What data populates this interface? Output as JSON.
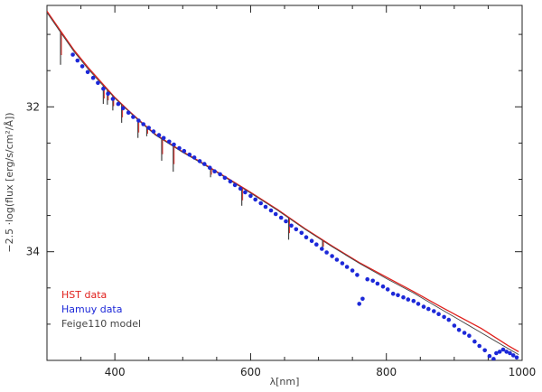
{
  "chart_data": {
    "type": "scatter",
    "xlabel": "λ[nm]",
    "ylabel": "−2.5 ·log(flux [erg/s/cm²/Å])",
    "xlim": [
      300,
      1000
    ],
    "ylim": [
      35.5,
      30.6
    ],
    "y_inverted": true,
    "grid": false,
    "x_ticks": [
      400,
      600,
      800,
      1000
    ],
    "y_ticks": [
      32,
      34
    ],
    "legend_position": "bottom-left",
    "legend": [
      {
        "label": "HST data",
        "color": "#e0201c"
      },
      {
        "label": "Hamuy data",
        "color": "#1c28d8"
      },
      {
        "label": "Feige110 model",
        "color": "#444444"
      }
    ],
    "series": [
      {
        "name": "HST data",
        "style": "line",
        "color": "#e0201c",
        "x": [
          300,
          320,
          340,
          360,
          380,
          400,
          420,
          440,
          460,
          480,
          500,
          530,
          560,
          600,
          640,
          680,
          720,
          760,
          800,
          840,
          880,
          900,
          920,
          940,
          960,
          980,
          995
        ],
        "y": [
          30.68,
          30.95,
          31.22,
          31.45,
          31.66,
          31.87,
          32.05,
          32.22,
          32.38,
          32.5,
          32.62,
          32.78,
          32.95,
          33.18,
          33.42,
          33.68,
          33.92,
          34.15,
          34.35,
          34.55,
          34.76,
          34.86,
          34.96,
          35.06,
          35.18,
          35.3,
          35.38
        ]
      },
      {
        "name": "Feige110 model",
        "style": "line",
        "color": "#444444",
        "x": [
          300,
          320,
          340,
          360,
          380,
          400,
          420,
          440,
          460,
          480,
          500,
          530,
          560,
          600,
          640,
          680,
          720,
          760,
          800,
          840,
          880,
          900,
          920,
          940,
          960,
          980,
          995
        ],
        "y": [
          30.7,
          30.97,
          31.24,
          31.47,
          31.68,
          31.88,
          32.06,
          32.23,
          32.39,
          32.51,
          32.63,
          32.79,
          32.96,
          33.19,
          33.43,
          33.69,
          33.93,
          34.16,
          34.37,
          34.57,
          34.79,
          34.9,
          35.01,
          35.12,
          35.23,
          35.34,
          35.42
        ]
      },
      {
        "name": "Hamuy data",
        "style": "points",
        "color": "#1c28d8",
        "x": [
          338,
          345,
          352,
          360,
          368,
          375,
          383,
          390,
          397,
          405,
          412,
          420,
          427,
          435,
          442,
          450,
          457,
          465,
          472,
          480,
          487,
          495,
          502,
          510,
          517,
          525,
          532,
          540,
          547,
          555,
          562,
          570,
          577,
          585,
          592,
          600,
          607,
          615,
          622,
          630,
          637,
          645,
          652,
          660,
          667,
          675,
          682,
          690,
          697,
          705,
          712,
          720,
          727,
          735,
          742,
          750,
          757,
          760,
          765,
          772,
          780,
          787,
          795,
          802,
          810,
          817,
          825,
          832,
          840,
          847,
          855,
          862,
          870,
          877,
          885,
          892,
          900,
          907,
          915,
          922,
          930,
          937,
          945,
          952,
          958,
          962,
          967,
          972,
          977,
          982,
          987,
          992
        ],
        "y": [
          31.28,
          31.36,
          31.44,
          31.52,
          31.6,
          31.67,
          31.75,
          31.82,
          31.89,
          31.96,
          32.02,
          32.08,
          32.14,
          32.19,
          32.24,
          32.29,
          32.34,
          32.39,
          32.43,
          32.48,
          32.52,
          32.57,
          32.61,
          32.66,
          32.7,
          32.75,
          32.79,
          32.84,
          32.89,
          32.93,
          32.98,
          33.03,
          33.08,
          33.13,
          33.18,
          33.23,
          33.28,
          33.33,
          33.38,
          33.43,
          33.48,
          33.53,
          33.58,
          33.64,
          33.69,
          33.74,
          33.8,
          33.85,
          33.9,
          33.96,
          34.01,
          34.06,
          34.11,
          34.16,
          34.21,
          34.26,
          34.32,
          34.72,
          34.65,
          34.38,
          34.4,
          34.44,
          34.48,
          34.52,
          34.58,
          34.6,
          34.63,
          34.66,
          34.68,
          34.72,
          34.76,
          34.79,
          34.82,
          34.86,
          34.9,
          34.94,
          35.02,
          35.08,
          35.12,
          35.16,
          35.24,
          35.3,
          35.36,
          35.44,
          35.48,
          35.4,
          35.38,
          35.35,
          35.38,
          35.4,
          35.43,
          35.46
        ]
      }
    ],
    "absorption_lines_nm": [
      320,
      383,
      389,
      397,
      410,
      434,
      447,
      469,
      486,
      541,
      587,
      656,
      706
    ]
  }
}
